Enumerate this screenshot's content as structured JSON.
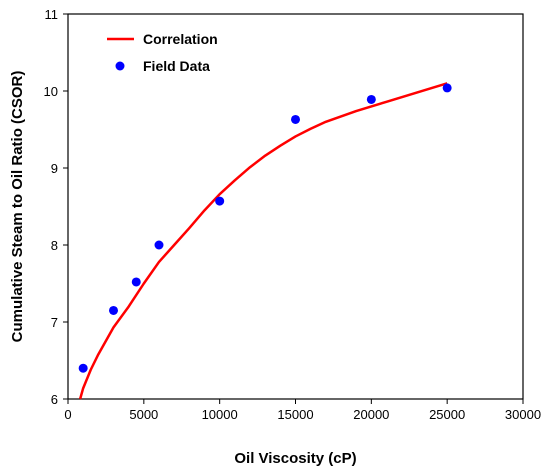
{
  "chart_data": {
    "type": "scatter",
    "xlabel": "Oil  Viscosity (cP)",
    "ylabel": "Cumulative Steam to Oil Ratio (CSOR)",
    "xlim": [
      0,
      30000
    ],
    "ylim": [
      6,
      11
    ],
    "x_ticks": [
      0,
      5000,
      10000,
      15000,
      20000,
      25000,
      30000
    ],
    "y_ticks": [
      6,
      7,
      8,
      9,
      10,
      11
    ],
    "grid": false,
    "legend_position": "top-left",
    "series": [
      {
        "name": "Correlation",
        "kind": "line",
        "color": "#ff0000",
        "points": [
          [
            800,
            6.0
          ],
          [
            1000,
            6.14
          ],
          [
            1500,
            6.38
          ],
          [
            2000,
            6.58
          ],
          [
            3000,
            6.93
          ],
          [
            4000,
            7.2
          ],
          [
            5000,
            7.5
          ],
          [
            6000,
            7.78
          ],
          [
            7000,
            8.0
          ],
          [
            8000,
            8.22
          ],
          [
            9000,
            8.45
          ],
          [
            10000,
            8.66
          ],
          [
            11000,
            8.84
          ],
          [
            12000,
            9.01
          ],
          [
            13000,
            9.16
          ],
          [
            14000,
            9.29
          ],
          [
            15000,
            9.41
          ],
          [
            16000,
            9.51
          ],
          [
            17000,
            9.6
          ],
          [
            18000,
            9.67
          ],
          [
            19000,
            9.74
          ],
          [
            20000,
            9.8
          ],
          [
            21000,
            9.86
          ],
          [
            22000,
            9.92
          ],
          [
            23000,
            9.98
          ],
          [
            24000,
            10.04
          ],
          [
            25000,
            10.1
          ]
        ]
      },
      {
        "name": "Field Data",
        "kind": "scatter",
        "color": "#0000ff",
        "points": [
          [
            1000,
            6.4
          ],
          [
            3000,
            7.15
          ],
          [
            4500,
            7.52
          ],
          [
            6000,
            8.0
          ],
          [
            10000,
            8.57
          ],
          [
            15000,
            9.63
          ],
          [
            20000,
            9.89
          ],
          [
            25000,
            10.04
          ]
        ]
      }
    ]
  }
}
